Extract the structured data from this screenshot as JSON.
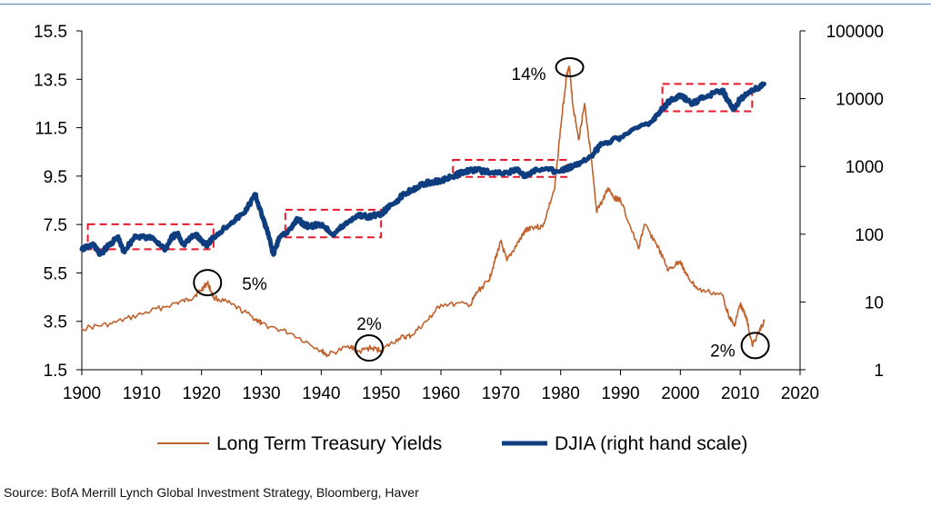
{
  "chart_data": {
    "type": "line",
    "title": "",
    "xlabel": "",
    "ylabel": "",
    "x_ticks": [
      "1900",
      "1910",
      "1920",
      "1930",
      "1940",
      "1950",
      "1960",
      "1970",
      "1980",
      "1990",
      "2000",
      "2010",
      "2020"
    ],
    "xlim": [
      1900,
      2020
    ],
    "y_left": {
      "ticks": [
        "1.5",
        "3.5",
        "5.5",
        "7.5",
        "9.5",
        "11.5",
        "13.5",
        "15.5"
      ],
      "range": [
        1.5,
        15.5
      ]
    },
    "y_right": {
      "ticks": [
        "1",
        "10",
        "100",
        "1000",
        "10000",
        "100000"
      ],
      "range": [
        1,
        100000
      ],
      "scale": "log"
    },
    "grid": false,
    "legend_position": "bottom",
    "series": [
      {
        "name": "Long Term Treasury Yields",
        "axis": "left",
        "color": "#c0612b",
        "x": [
          1900,
          1905,
          1910,
          1915,
          1918,
          1920,
          1921,
          1922,
          1925,
          1929,
          1930,
          1935,
          1940,
          1941,
          1945,
          1946,
          1948,
          1950,
          1953,
          1955,
          1958,
          1960,
          1965,
          1966,
          1968,
          1969,
          1970,
          1971,
          1973,
          1974,
          1975,
          1977,
          1979,
          1980,
          1981,
          1981.5,
          1982,
          1983,
          1984,
          1985,
          1986,
          1987,
          1988,
          1989,
          1990,
          1993,
          1994,
          1996,
          1998,
          2000,
          2001,
          2003,
          2007,
          2008,
          2009,
          2010,
          2011,
          2012,
          2013,
          2014
        ],
        "values": [
          3.2,
          3.4,
          3.8,
          4.2,
          4.4,
          4.8,
          5.1,
          4.5,
          4.2,
          3.6,
          3.4,
          3.0,
          2.3,
          2.1,
          2.5,
          2.2,
          2.4,
          2.3,
          2.8,
          2.9,
          3.6,
          4.2,
          4.2,
          4.7,
          5.2,
          6.0,
          6.8,
          6.0,
          6.8,
          7.2,
          7.4,
          7.4,
          9.0,
          11.5,
          13.7,
          14.0,
          12.5,
          11.0,
          12.5,
          10.5,
          8.0,
          8.5,
          9.0,
          8.6,
          8.5,
          6.5,
          7.5,
          6.7,
          5.6,
          6.0,
          5.4,
          4.8,
          4.6,
          3.8,
          3.3,
          4.2,
          3.7,
          2.5,
          3.0,
          3.5
        ]
      },
      {
        "name": "DJIA (right hand scale)",
        "axis": "right",
        "color": "#0f3e80",
        "x": [
          1900,
          1902,
          1903,
          1905,
          1906,
          1907,
          1909,
          1912,
          1914,
          1915,
          1916,
          1917,
          1919,
          1920,
          1921,
          1922,
          1925,
          1927,
          1929,
          1930,
          1931,
          1932,
          1933,
          1935,
          1936,
          1937,
          1938,
          1940,
          1942,
          1944,
          1946,
          1948,
          1950,
          1952,
          1954,
          1956,
          1958,
          1960,
          1962,
          1964,
          1966,
          1970,
          1973,
          1974,
          1976,
          1980,
          1982,
          1985,
          1987,
          1990,
          1995,
          1997,
          1998,
          2000,
          2002,
          2004,
          2007,
          2008,
          2009,
          2010,
          2012,
          2014
        ],
        "values": [
          60,
          70,
          50,
          75,
          90,
          55,
          95,
          85,
          60,
          90,
          100,
          70,
          100,
          80,
          70,
          90,
          150,
          200,
          380,
          200,
          110,
          50,
          90,
          120,
          170,
          140,
          130,
          140,
          100,
          140,
          190,
          180,
          200,
          280,
          400,
          500,
          580,
          620,
          700,
          860,
          880,
          780,
          900,
          700,
          900,
          850,
          1000,
          1400,
          2200,
          2700,
          4500,
          7000,
          9000,
          11000,
          8500,
          10500,
          13500,
          9000,
          7000,
          10000,
          13000,
          16500
        ]
      }
    ],
    "annotations": [
      {
        "text": "5%",
        "x": 1921,
        "y": 5.1
      },
      {
        "text": "2%",
        "x": 1948,
        "y": 2.4
      },
      {
        "text": "14%",
        "x": 1981.5,
        "y": 14.0
      },
      {
        "text": "2%",
        "x": 2012.5,
        "y": 2.5
      }
    ],
    "highlight_boxes": [
      {
        "x_from": 1901,
        "x_to": 1922,
        "y_from": 60,
        "y_to": 140
      },
      {
        "x_from": 1934,
        "x_to": 1950,
        "y_from": 90,
        "y_to": 230
      },
      {
        "x_from": 1962,
        "x_to": 1981,
        "y_from": 700,
        "y_to": 1250
      },
      {
        "x_from": 1997,
        "x_to": 2012,
        "y_from": 6500,
        "y_to": 16500
      }
    ]
  },
  "source": "Source: BofA Merrill Lynch Global Investment Strategy, Bloomberg, Haver"
}
